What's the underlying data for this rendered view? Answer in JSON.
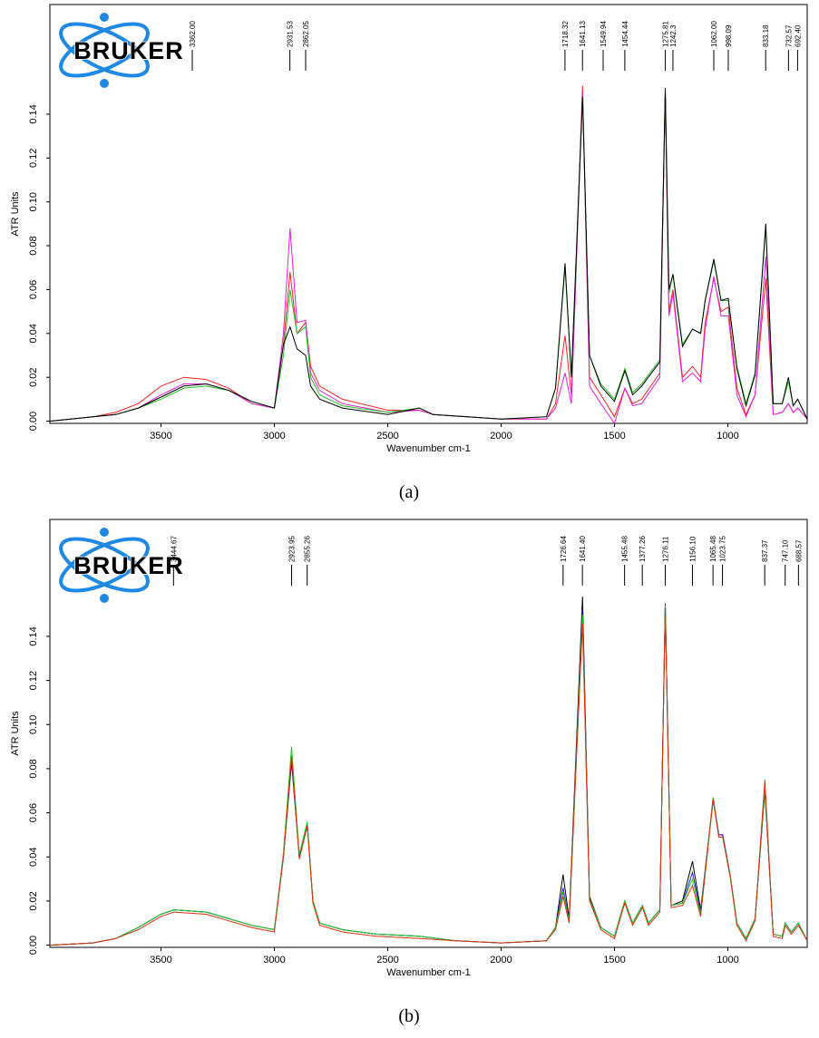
{
  "chart_data": [
    {
      "type": "line",
      "logo": "BRUKER",
      "caption": "(a)",
      "xlabel": "Wavenumber cm-1",
      "ylabel": "ATR Units",
      "xlim": [
        3990,
        650
      ],
      "ylim": [
        -0.001,
        0.19
      ],
      "xticks": [
        3500,
        3000,
        2500,
        2000,
        1500,
        1000
      ],
      "yticks": [
        {
          "value": 0,
          "label": "0.00"
        },
        {
          "value": 0.02,
          "label": "0.02"
        },
        {
          "value": 0.04,
          "label": "0.04"
        },
        {
          "value": 0.06,
          "label": "0.06"
        },
        {
          "value": 0.08,
          "label": "0.08"
        },
        {
          "value": 0.1,
          "label": "0.10"
        },
        {
          "value": 0.12,
          "label": "0.12"
        },
        {
          "value": 0.14,
          "label": "0.14"
        }
      ],
      "peaks": [
        {
          "value": 3362,
          "label": "3362.00"
        },
        2931.53,
        2862.05,
        1718.32,
        1641.13,
        1549.94,
        1454.44,
        1275.81,
        1242.3,
        {
          "value": 1062,
          "label": "1062.00"
        },
        998.09,
        833.18,
        732.57,
        {
          "value": 692.4,
          "label": "692.40"
        }
      ],
      "x": [
        3990,
        3800,
        3700,
        3600,
        3500,
        3400,
        3300,
        3200,
        3100,
        3000,
        2960,
        2931,
        2900,
        2862,
        2840,
        2800,
        2700,
        2500,
        2360,
        2300,
        2000,
        1800,
        1760,
        1718,
        1690,
        1641,
        1610,
        1560,
        1500,
        1454,
        1420,
        1380,
        1300,
        1276,
        1260,
        1242,
        1200,
        1156,
        1120,
        1100,
        1062,
        1030,
        998,
        960,
        920,
        880,
        833,
        800,
        760,
        733,
        712,
        692,
        650
      ],
      "series": [
        {
          "color": "#ff2020",
          "values": [
            0,
            0.002,
            0.004,
            0.008,
            0.016,
            0.02,
            0.019,
            0.015,
            0.008,
            0.006,
            0.035,
            0.068,
            0.04,
            0.045,
            0.025,
            0.016,
            0.01,
            0.005,
            0.005,
            0.003,
            0.001,
            0.001,
            0.008,
            0.039,
            0.012,
            0.153,
            0.02,
            0.012,
            0.002,
            0.015,
            0.008,
            0.01,
            0.022,
            0.15,
            0.05,
            0.06,
            0.02,
            0.025,
            0.02,
            0.045,
            0.065,
            0.05,
            0.052,
            0.015,
            0.003,
            0.012,
            0.065,
            0.003,
            0.004,
            0.008,
            0.004,
            0.006,
            0.001
          ]
        },
        {
          "color": "#e020e0",
          "values": [
            0,
            0.002,
            0.003,
            0.006,
            0.012,
            0.017,
            0.017,
            0.014,
            0.008,
            0.006,
            0.04,
            0.088,
            0.045,
            0.046,
            0.022,
            0.014,
            0.008,
            0.004,
            0.005,
            0.003,
            0.001,
            0.001,
            0.006,
            0.022,
            0.008,
            0.15,
            0.016,
            0.008,
            -0.001,
            0.015,
            0.007,
            0.008,
            0.02,
            0.15,
            0.048,
            0.058,
            0.018,
            0.022,
            0.018,
            0.042,
            0.066,
            0.048,
            0.048,
            0.012,
            0.002,
            0.012,
            0.075,
            0.003,
            0.004,
            0.008,
            0.004,
            0.006,
            0.001
          ]
        },
        {
          "color": "#20c020",
          "values": [
            0,
            0.002,
            0.003,
            0.006,
            0.01,
            0.015,
            0.016,
            0.014,
            0.009,
            0.006,
            0.03,
            0.06,
            0.04,
            0.043,
            0.02,
            0.012,
            0.007,
            0.004,
            0.006,
            0.003,
            0.001,
            0.002,
            0.015,
            0.07,
            0.02,
            0.148,
            0.03,
            0.017,
            0.01,
            0.024,
            0.013,
            0.017,
            0.028,
            0.15,
            0.058,
            0.067,
            0.035,
            0.042,
            0.04,
            0.055,
            0.073,
            0.055,
            0.055,
            0.025,
            0.008,
            0.022,
            0.088,
            0.008,
            0.008,
            0.018,
            0.007,
            0.01,
            0.001
          ]
        },
        {
          "color": "#000000",
          "values": [
            0,
            0.002,
            0.003,
            0.006,
            0.011,
            0.016,
            0.017,
            0.014,
            0.009,
            0.006,
            0.035,
            0.043,
            0.033,
            0.03,
            0.016,
            0.01,
            0.006,
            0.003,
            0.006,
            0.003,
            0.001,
            0.002,
            0.015,
            0.072,
            0.02,
            0.148,
            0.03,
            0.016,
            0.009,
            0.023,
            0.012,
            0.016,
            0.027,
            0.152,
            0.06,
            0.067,
            0.034,
            0.042,
            0.04,
            0.055,
            0.074,
            0.055,
            0.056,
            0.024,
            0.007,
            0.021,
            0.09,
            0.008,
            0.008,
            0.02,
            0.007,
            0.01,
            0.001
          ]
        }
      ]
    },
    {
      "type": "line",
      "logo": "BRUKER",
      "caption": "(b)",
      "xlabel": "Wavenumber cm-1",
      "ylabel": "ATR Units",
      "xlim": [
        3990,
        650
      ],
      "ylim": [
        -0.001,
        0.193
      ],
      "xticks": [
        3500,
        3000,
        2500,
        2000,
        1500,
        1000
      ],
      "yticks": [
        {
          "value": 0,
          "label": "0.00"
        },
        {
          "value": 0.02,
          "label": "0.02"
        },
        {
          "value": 0.04,
          "label": "0.04"
        },
        {
          "value": 0.06,
          "label": "0.06"
        },
        {
          "value": 0.08,
          "label": "0.08"
        },
        {
          "value": 0.1,
          "label": "0.10"
        },
        {
          "value": 0.12,
          "label": "0.12"
        },
        {
          "value": 0.14,
          "label": "0.14"
        }
      ],
      "peaks": [
        3444.67,
        2923.95,
        2855.26,
        1726.64,
        {
          "value": 1641.4,
          "label": "1641.40"
        },
        1455.48,
        1377.26,
        1276.11,
        {
          "value": 1156.1,
          "label": "1156.10"
        },
        1065.48,
        1023.75,
        837.37,
        {
          "value": 747.1,
          "label": "747.10"
        },
        688.57
      ],
      "x": [
        3990,
        3800,
        3700,
        3600,
        3500,
        3444,
        3300,
        3200,
        3100,
        3000,
        2960,
        2924,
        2890,
        2855,
        2830,
        2800,
        2700,
        2550,
        2360,
        2200,
        2000,
        1800,
        1760,
        1727,
        1700,
        1641,
        1610,
        1560,
        1500,
        1455,
        1420,
        1377,
        1350,
        1300,
        1276,
        1250,
        1200,
        1156,
        1120,
        1065,
        1040,
        1023,
        990,
        960,
        920,
        880,
        837,
        800,
        760,
        747,
        720,
        689,
        650
      ],
      "series": [
        {
          "color": "#000000",
          "values": [
            0,
            0.001,
            0.003,
            0.008,
            0.014,
            0.016,
            0.015,
            0.012,
            0.009,
            0.007,
            0.04,
            0.083,
            0.04,
            0.055,
            0.02,
            0.01,
            0.007,
            0.005,
            0.004,
            0.002,
            0.001,
            0.002,
            0.008,
            0.032,
            0.012,
            0.158,
            0.022,
            0.008,
            0.004,
            0.02,
            0.01,
            0.018,
            0.01,
            0.016,
            0.155,
            0.018,
            0.02,
            0.038,
            0.016,
            0.066,
            0.05,
            0.05,
            0.032,
            0.01,
            0.003,
            0.012,
            0.07,
            0.005,
            0.004,
            0.01,
            0.006,
            0.01,
            0.002
          ]
        },
        {
          "color": "#2020e0",
          "values": [
            0,
            0.001,
            0.003,
            0.008,
            0.014,
            0.016,
            0.015,
            0.012,
            0.009,
            0.007,
            0.041,
            0.085,
            0.04,
            0.055,
            0.02,
            0.01,
            0.007,
            0.005,
            0.004,
            0.002,
            0.001,
            0.002,
            0.008,
            0.026,
            0.011,
            0.152,
            0.021,
            0.008,
            0.004,
            0.02,
            0.01,
            0.018,
            0.01,
            0.016,
            0.155,
            0.018,
            0.019,
            0.033,
            0.015,
            0.067,
            0.05,
            0.05,
            0.032,
            0.01,
            0.003,
            0.012,
            0.072,
            0.005,
            0.004,
            0.01,
            0.006,
            0.01,
            0.002
          ]
        },
        {
          "color": "#20d020",
          "values": [
            0,
            0.001,
            0.003,
            0.008,
            0.014,
            0.016,
            0.015,
            0.012,
            0.009,
            0.007,
            0.042,
            0.09,
            0.041,
            0.056,
            0.02,
            0.01,
            0.007,
            0.005,
            0.004,
            0.002,
            0.001,
            0.002,
            0.008,
            0.024,
            0.011,
            0.15,
            0.021,
            0.008,
            0.004,
            0.02,
            0.01,
            0.018,
            0.01,
            0.016,
            0.154,
            0.018,
            0.019,
            0.03,
            0.014,
            0.067,
            0.049,
            0.049,
            0.032,
            0.01,
            0.003,
            0.012,
            0.072,
            0.005,
            0.004,
            0.01,
            0.006,
            0.01,
            0.002
          ]
        },
        {
          "color": "#e03010",
          "values": [
            0,
            0.001,
            0.003,
            0.007,
            0.013,
            0.015,
            0.014,
            0.011,
            0.008,
            0.006,
            0.04,
            0.086,
            0.039,
            0.054,
            0.019,
            0.009,
            0.006,
            0.004,
            0.003,
            0.002,
            0.001,
            0.002,
            0.007,
            0.022,
            0.01,
            0.146,
            0.02,
            0.007,
            0.003,
            0.019,
            0.009,
            0.017,
            0.009,
            0.015,
            0.153,
            0.017,
            0.018,
            0.027,
            0.013,
            0.066,
            0.049,
            0.049,
            0.031,
            0.009,
            0.002,
            0.011,
            0.075,
            0.004,
            0.003,
            0.009,
            0.005,
            0.009,
            0.002
          ]
        }
      ]
    }
  ]
}
